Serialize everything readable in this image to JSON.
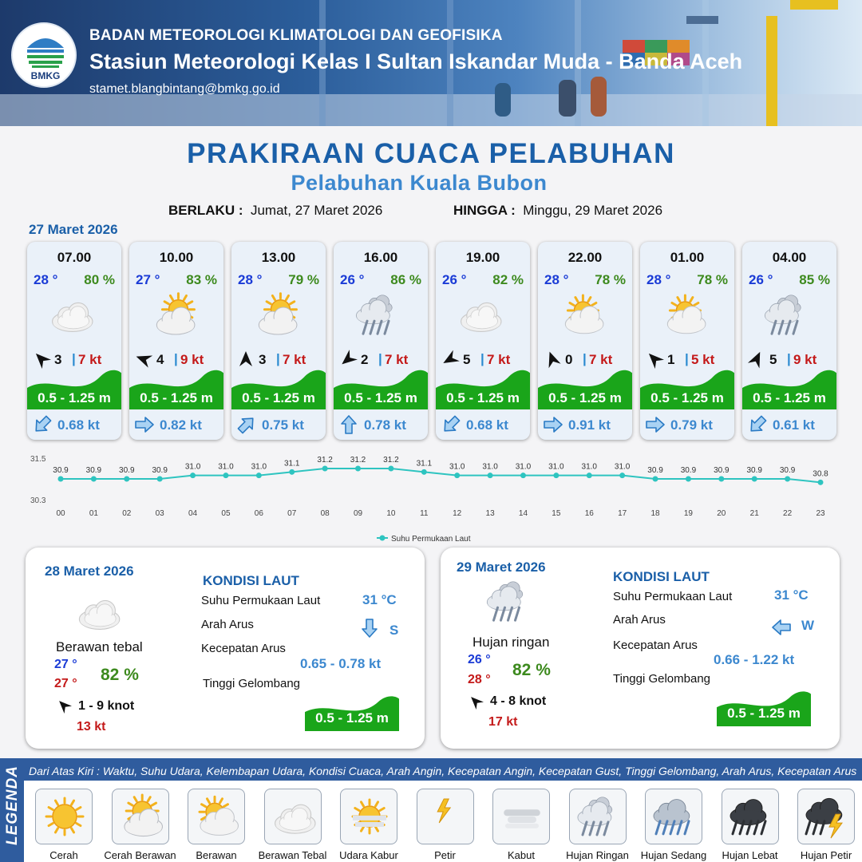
{
  "header": {
    "agency": "BADAN METEOROLOGI KLIMATOLOGI DAN GEOFISIKA",
    "station": "Stasiun Meteorologi Kelas I Sultan Iskandar Muda - Banda Aceh",
    "email": "stamet.blangbintang@bmkg.go.id",
    "logo_text": "BMKG"
  },
  "title": "PRAKIRAAN CUACA PELABUHAN",
  "subtitle": "Pelabuhan Kuala Bubon",
  "validity": {
    "from_label": "BERLAKU :",
    "from_value": "Jumat, 27 Maret 2026",
    "to_label": "HINGGA :",
    "to_value": "Minggu, 29 Maret 2026"
  },
  "day1_date": "27 Maret 2026",
  "forecasts": [
    {
      "time": "07.00",
      "temp": "28 °",
      "humidity": "80 %",
      "weather_icon": "berawan-tebal",
      "wind_dir_deg": 315,
      "wind_speed": "3",
      "gust": "7 kt",
      "wave": "0.5 - 1.25 m",
      "current_icon": "arrow-southwest",
      "current_dir_deg": 225,
      "current_speed": "0.68 kt"
    },
    {
      "time": "10.00",
      "temp": "27 °",
      "humidity": "83 %",
      "weather_icon": "cerah-berawan",
      "wind_dir_deg": 290,
      "wind_speed": "4",
      "gust": "9 kt",
      "wave": "0.5 - 1.25 m",
      "current_icon": "arrow-east",
      "current_dir_deg": 90,
      "current_speed": "0.82 kt"
    },
    {
      "time": "13.00",
      "temp": "28 °",
      "humidity": "79 %",
      "weather_icon": "cerah-berawan",
      "wind_dir_deg": 0,
      "wind_speed": "3",
      "gust": "7 kt",
      "wave": "0.5 - 1.25 m",
      "current_icon": "arrow-northeast",
      "current_dir_deg": 45,
      "current_speed": "0.75 kt"
    },
    {
      "time": "16.00",
      "temp": "26 °",
      "humidity": "86 %",
      "weather_icon": "hujan-ringan",
      "wind_dir_deg": 230,
      "wind_speed": "2",
      "gust": "7 kt",
      "wave": "0.5 - 1.25 m",
      "current_icon": "arrow-north",
      "current_dir_deg": 0,
      "current_speed": "0.78 kt"
    },
    {
      "time": "19.00",
      "temp": "26 °",
      "humidity": "82 %",
      "weather_icon": "berawan-tebal",
      "wind_dir_deg": 240,
      "wind_speed": "5",
      "gust": "7 kt",
      "wave": "0.5 - 1.25 m",
      "current_icon": "arrow-southwest",
      "current_dir_deg": 225,
      "current_speed": "0.68 kt"
    },
    {
      "time": "22.00",
      "temp": "28 °",
      "humidity": "78 %",
      "weather_icon": "berawan",
      "wind_dir_deg": 340,
      "wind_speed": "0",
      "gust": "7 kt",
      "wave": "0.5 - 1.25 m",
      "current_icon": "arrow-east",
      "current_dir_deg": 90,
      "current_speed": "0.91 kt"
    },
    {
      "time": "01.00",
      "temp": "28 °",
      "humidity": "78 %",
      "weather_icon": "berawan",
      "wind_dir_deg": 315,
      "wind_speed": "1",
      "gust": "5 kt",
      "wave": "0.5 - 1.25 m",
      "current_icon": "arrow-east",
      "current_dir_deg": 90,
      "current_speed": "0.79 kt"
    },
    {
      "time": "04.00",
      "temp": "26 °",
      "humidity": "85 %",
      "weather_icon": "hujan-ringan",
      "wind_dir_deg": 25,
      "wind_speed": "5",
      "gust": "9 kt",
      "wave": "0.5 - 1.25 m",
      "current_icon": "arrow-southwest",
      "current_dir_deg": 225,
      "current_speed": "0.61 kt"
    }
  ],
  "chart_data": {
    "type": "line",
    "x": [
      "00",
      "01",
      "02",
      "03",
      "04",
      "05",
      "06",
      "07",
      "08",
      "09",
      "10",
      "11",
      "12",
      "13",
      "14",
      "15",
      "16",
      "17",
      "18",
      "19",
      "20",
      "21",
      "22",
      "23"
    ],
    "series": [
      {
        "name": "Suhu Permukaan Laut",
        "values": [
          30.9,
          30.9,
          30.9,
          30.9,
          31.0,
          31.0,
          31.0,
          31.1,
          31.2,
          31.2,
          31.2,
          31.1,
          31.0,
          31.0,
          31.0,
          31.0,
          31.0,
          31.0,
          30.9,
          30.9,
          30.9,
          30.9,
          30.9,
          30.8
        ],
        "labels": [
          "30.9",
          "30.9",
          "30.9",
          "30.9",
          "31.0",
          "31.0",
          "31.0",
          "31.1",
          "31.2",
          "31.2",
          "31.2",
          "31.1",
          "31.0",
          "31.0",
          "31.0",
          "31.0",
          "31.0",
          "31.0",
          "30.9",
          "30.9",
          "30.9",
          "30.9",
          "30.9",
          "30.8"
        ],
        "color": "#2ec4c0"
      }
    ],
    "ylim": [
      30.3,
      31.5
    ],
    "yticks": [
      "31.5",
      "30.3"
    ],
    "legend_position": "bottom-center"
  },
  "days": [
    {
      "date": "28 Maret 2026",
      "weather_icon": "berawan-tebal",
      "weather": "Berawan tebal",
      "temp_min": "27 °",
      "temp_max": "27 °",
      "humidity": "82 %",
      "wind_dir_deg": 315,
      "wind": "1 - 9 knot",
      "gust": "13 kt",
      "kondisi_title": "KONDISI LAUT",
      "sst_label": "Suhu Permukaan Laut",
      "sst": "31 °C",
      "current_dir_label": "Arah Arus",
      "current_icon": "arrow-south",
      "current_dir_deg": 180,
      "current_dir": "S",
      "current_speed_label": "Kecepatan Arus",
      "current_speed": "0.65  - 0.78 kt",
      "wave_label": "Tinggi Gelombang",
      "wave": "0.5 - 1.25 m"
    },
    {
      "date": "29 Maret 2026",
      "weather_icon": "hujan-ringan",
      "weather": "Hujan ringan",
      "temp_min": "26 °",
      "temp_max": "28 °",
      "humidity": "82 %",
      "wind_dir_deg": 315,
      "wind": "4 - 8 knot",
      "gust": "17 kt",
      "kondisi_title": "KONDISI LAUT",
      "sst_label": "Suhu Permukaan Laut",
      "sst": "31 °C",
      "current_dir_label": "Arah Arus",
      "current_icon": "arrow-west",
      "current_dir_deg": 270,
      "current_dir": "W",
      "current_speed_label": "Kecepatan Arus",
      "current_speed": "0.66 - 1.22 kt",
      "wave_label": "Tinggi Gelombang",
      "wave": "0.5 - 1.25 m"
    }
  ],
  "legend": {
    "title": "LEGENDA",
    "description": "Dari Atas Kiri : Waktu, Suhu Udara, Kelembapan Udara, Kondisi Cuaca, Arah Angin, Kecepatan Angin, Kecepatan Gust, Tinggi Gelombang, Arah Arus, Kecepatan Arus",
    "items": [
      {
        "label": "Cerah",
        "icon": "cerah"
      },
      {
        "label": "Cerah Berawan",
        "icon": "cerah-berawan"
      },
      {
        "label": "Berawan",
        "icon": "berawan"
      },
      {
        "label": "Berawan Tebal",
        "icon": "berawan-tebal"
      },
      {
        "label": "Udara Kabur",
        "icon": "udara-kabur"
      },
      {
        "label": "Petir",
        "icon": "petir"
      },
      {
        "label": "Kabut",
        "icon": "kabut"
      },
      {
        "label": "Hujan Ringan",
        "icon": "hujan-ringan"
      },
      {
        "label": "Hujan Sedang",
        "icon": "hujan-sedang"
      },
      {
        "label": "Hujan Lebat",
        "icon": "hujan-lebat"
      },
      {
        "label": "Hujan Petir",
        "icon": "hujan-petir"
      }
    ]
  },
  "colors": {
    "title": "#1a5fa8",
    "temp": "#1a3bd6",
    "humidity": "#3d8a1e",
    "gust": "#c41a1a",
    "wave_green": "#1aa51a",
    "current_blue": "#3c88cf"
  }
}
